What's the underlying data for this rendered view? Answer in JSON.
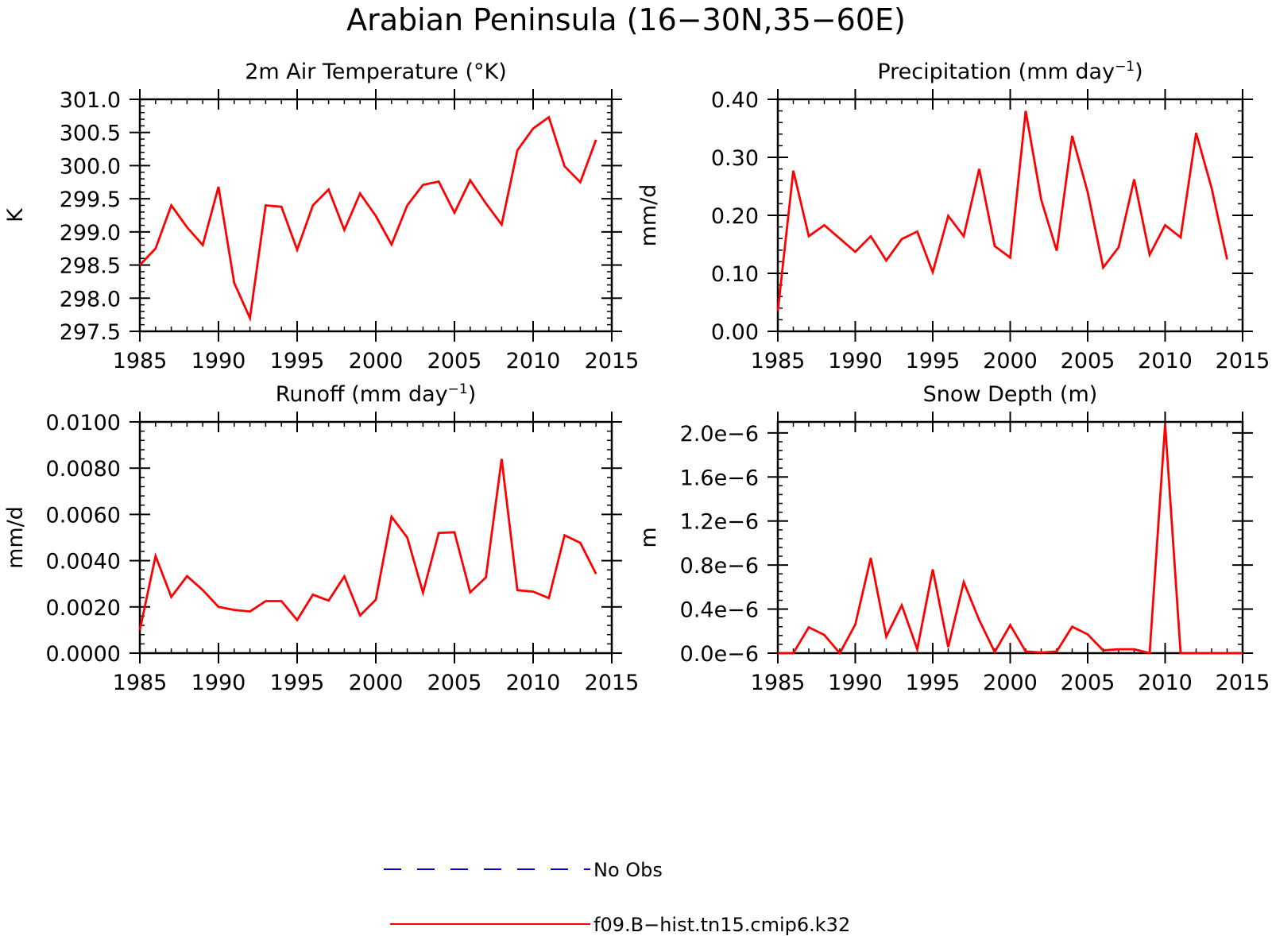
{
  "main_title": "Arabian Peninsula (16−30N,35−60E)",
  "legend": [
    {
      "label": "No Obs",
      "color": "#0000cc",
      "dashed": true
    },
    {
      "label": "f09.B−hist.tn15.cmip6.k32",
      "color": "#ff0000",
      "dashed": false
    }
  ],
  "chart_data": [
    {
      "type": "line",
      "title": "2m Air Temperature (°K)",
      "title_sup": "",
      "title_end": "",
      "ylabel": "K",
      "xlim": [
        1985,
        2015
      ],
      "ylim": [
        297.5,
        301.0
      ],
      "xticks": [
        1985,
        1990,
        1995,
        2000,
        2005,
        2010,
        2015
      ],
      "yticks": [
        297.5,
        298.0,
        298.5,
        299.0,
        299.5,
        300.0,
        300.5,
        301.0
      ],
      "ytick_labels": [
        "297.5",
        "298.0",
        "298.5",
        "299.0",
        "299.5",
        "300.0",
        "300.5",
        "301.0"
      ],
      "x": [
        1985,
        1986,
        1987,
        1988,
        1989,
        1990,
        1991,
        1992,
        1993,
        1994,
        1995,
        1996,
        1997,
        1998,
        1999,
        2000,
        2001,
        2002,
        2003,
        2004,
        2005,
        2006,
        2007,
        2008,
        2009,
        2010,
        2011,
        2012,
        2013,
        2014
      ],
      "series": [
        {
          "name": "f09.B−hist.tn15.cmip6.k32",
          "color": "#ff0000",
          "values": [
            298.5,
            298.75,
            299.4,
            299.07,
            298.8,
            299.68,
            298.23,
            297.7,
            299.4,
            299.38,
            298.73,
            299.4,
            299.64,
            299.03,
            299.58,
            299.24,
            298.81,
            299.4,
            299.71,
            299.76,
            299.29,
            299.78,
            299.43,
            299.11,
            300.23,
            300.56,
            300.73,
            299.99,
            299.75,
            300.39
          ]
        }
      ]
    },
    {
      "type": "line",
      "title": "Precipitation (mm day",
      "title_sup": "−1",
      "title_end": ")",
      "ylabel": "mm/d",
      "xlim": [
        1985,
        2015
      ],
      "ylim": [
        0.0,
        0.4
      ],
      "xticks": [
        1985,
        1990,
        1995,
        2000,
        2005,
        2010,
        2015
      ],
      "yticks": [
        0.0,
        0.1,
        0.2,
        0.3,
        0.4
      ],
      "ytick_labels": [
        "0.00",
        "0.10",
        "0.20",
        "0.30",
        "0.40"
      ],
      "x": [
        1985,
        1986,
        1987,
        1988,
        1989,
        1990,
        1991,
        1992,
        1993,
        1994,
        1995,
        1996,
        1997,
        1998,
        1999,
        2000,
        2001,
        2002,
        2003,
        2004,
        2005,
        2006,
        2007,
        2008,
        2009,
        2010,
        2011,
        2012,
        2013,
        2014
      ],
      "series": [
        {
          "name": "f09.B−hist.tn15.cmip6.k32",
          "color": "#ff0000",
          "values": [
            0.035,
            0.277,
            0.164,
            0.183,
            0.16,
            0.137,
            0.164,
            0.122,
            0.159,
            0.172,
            0.102,
            0.199,
            0.164,
            0.28,
            0.147,
            0.127,
            0.38,
            0.227,
            0.139,
            0.337,
            0.24,
            0.11,
            0.145,
            0.262,
            0.132,
            0.183,
            0.162,
            0.342,
            0.247,
            0.124
          ]
        }
      ]
    },
    {
      "type": "line",
      "title": "Runoff (mm day",
      "title_sup": "−1",
      "title_end": ")",
      "ylabel": "mm/d",
      "xlim": [
        1985,
        2015
      ],
      "ylim": [
        0.0,
        0.01
      ],
      "xticks": [
        1985,
        1990,
        1995,
        2000,
        2005,
        2010,
        2015
      ],
      "yticks": [
        0.0,
        0.002,
        0.004,
        0.006,
        0.008,
        0.01
      ],
      "ytick_labels": [
        "0.0000",
        "0.0020",
        "0.0040",
        "0.0060",
        "0.0080",
        "0.0100"
      ],
      "x": [
        1985,
        1986,
        1987,
        1988,
        1989,
        1990,
        1991,
        1992,
        1993,
        1994,
        1995,
        1996,
        1997,
        1998,
        1999,
        2000,
        2001,
        2002,
        2003,
        2004,
        2005,
        2006,
        2007,
        2008,
        2009,
        2010,
        2011,
        2012,
        2013,
        2014
      ],
      "series": [
        {
          "name": "f09.B−hist.tn15.cmip6.k32",
          "color": "#ff0000",
          "values": [
            0.001,
            0.0042,
            0.00243,
            0.00333,
            0.00273,
            0.002,
            0.00187,
            0.0018,
            0.00225,
            0.00225,
            0.00143,
            0.00253,
            0.00227,
            0.00332,
            0.00163,
            0.00231,
            0.0059,
            0.005,
            0.00262,
            0.0052,
            0.00523,
            0.00263,
            0.00328,
            0.0084,
            0.00272,
            0.00266,
            0.00238,
            0.0051,
            0.00477,
            0.00343
          ]
        }
      ]
    },
    {
      "type": "line",
      "title": "Snow Depth (m)",
      "title_sup": "",
      "title_end": "",
      "ylabel": "m",
      "xlim": [
        1985,
        2015
      ],
      "ylim": [
        0.0,
        2.1e-06
      ],
      "xticks": [
        1985,
        1990,
        1995,
        2000,
        2005,
        2010,
        2015
      ],
      "yticks": [
        0.0,
        4e-07,
        8e-07,
        1.2e-06,
        1.6e-06,
        2e-06
      ],
      "ytick_labels": [
        "0.0e−6",
        "0.4e−6",
        "0.8e−6",
        "1.2e−6",
        "1.6e−6",
        "2.0e−6"
      ],
      "x": [
        1985,
        1986,
        1987,
        1988,
        1989,
        1990,
        1991,
        1992,
        1993,
        1994,
        1995,
        1996,
        1997,
        1998,
        1999,
        2000,
        2001,
        2002,
        2003,
        2004,
        2005,
        2006,
        2007,
        2008,
        2009,
        2010,
        2011,
        2012,
        2013,
        2014,
        2015
      ],
      "series": [
        {
          "name": "f09.B−hist.tn15.cmip6.k32",
          "color": "#ff0000",
          "values": [
            0.0,
            0.0,
            2.35e-07,
            1.65e-07,
            0.0,
            2.6e-07,
            8.65e-07,
            1.5e-07,
            4.35e-07,
            3.5e-08,
            7.6e-07,
            5.5e-08,
            6.45e-07,
            3e-07,
            1e-08,
            2.55e-07,
            1.5e-08,
            5e-09,
            1.5e-08,
            2.4e-07,
            1.7e-07,
            2.5e-08,
            3.5e-08,
            3.5e-08,
            0.0,
            2.08e-06,
            0.0,
            0.0,
            0.0,
            0.0,
            0.0
          ]
        }
      ]
    }
  ]
}
